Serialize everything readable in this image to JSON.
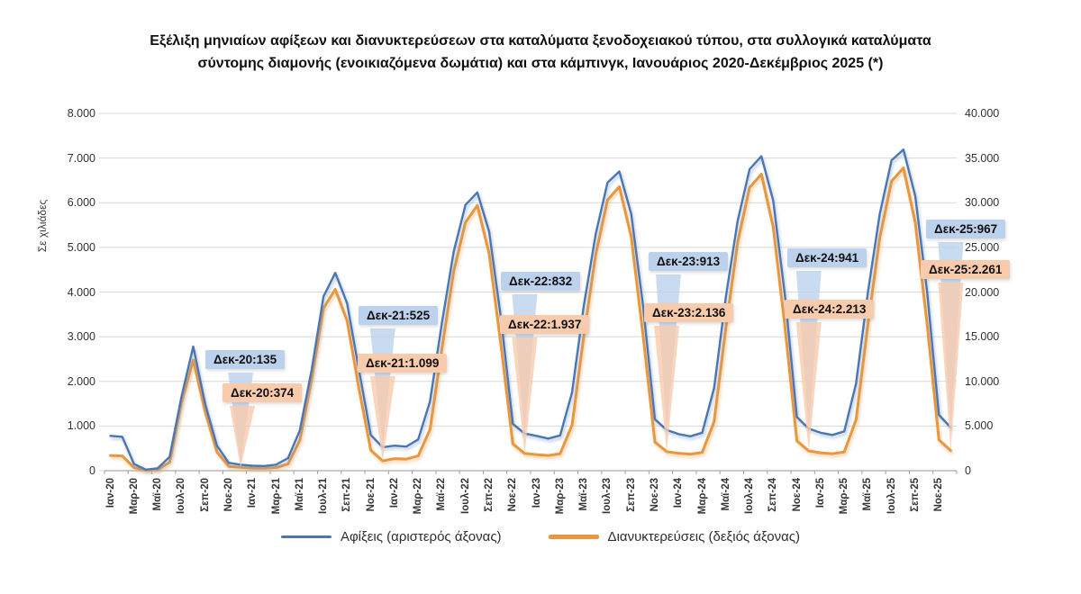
{
  "title": {
    "line1": "Εξέλιξη μηνιαίων αφίξεων και διανυκτερεύσεων στα καταλύματα ξενοδοχειακού τύπου, στα συλλογικά καταλύματα",
    "line2": "σύντομης διαμονής (ενοικιαζόμενα δωμάτια) και στα κάμπινγκ, Ιανουάριος 2020-Δεκέμβριος 2025 (*)"
  },
  "legend": {
    "items": [
      {
        "label": "Αφίξεις (αριστερός άξονας)",
        "color": "#4b76b2"
      },
      {
        "label": "Διανυκτερεύσεις (δεξιός άξονας)",
        "color": "#e9963e"
      }
    ]
  },
  "chart_data": {
    "type": "line",
    "left_axis": {
      "title": "Σε χιλιάδες",
      "min": 0,
      "max": 8000,
      "tick_step": 1000,
      "tick_labels": [
        "0",
        "1.000",
        "2.000",
        "3.000",
        "4.000",
        "5.000",
        "6.000",
        "7.000",
        "8.000"
      ]
    },
    "right_axis": {
      "min": 0,
      "max": 40000,
      "tick_step": 5000,
      "tick_labels": [
        "0",
        "5.000",
        "10.000",
        "15.000",
        "20.000",
        "25.000",
        "30.000",
        "35.000",
        "40.000"
      ]
    },
    "x_tick_labels": [
      "Ιαν-20",
      "Μαρ-20",
      "Μαϊ-20",
      "Ιουλ-20",
      "Σεπ-20",
      "Νοε-20",
      "Ιαν-21",
      "Μαρ-21",
      "Μαϊ-21",
      "Ιουλ-21",
      "Σεπ-21",
      "Νοε-21",
      "Ιαν-22",
      "Μαρ-22",
      "Μαϊ-22",
      "Ιουλ-22",
      "Σεπ-22",
      "Νοε-22",
      "Ιαν-23",
      "Μαρ-23",
      "Μαϊ-23",
      "Ιουλ-23",
      "Σεπ-23",
      "Νοε-23",
      "Ιαν-24",
      "Μαρ-24",
      "Μαϊ-24",
      "Ιουλ-24",
      "Σεπ-24",
      "Νοε-24",
      "Ιαν-25",
      "Μαρ-25",
      "Μαϊ-25",
      "Ιουλ-25",
      "Σεπ-25",
      "Νοε-25"
    ],
    "series": [
      {
        "name": "Αφίξεις (αριστερός άξονας)",
        "axis": "left",
        "color": "#4b76b2",
        "values": [
          780,
          760,
          150,
          25,
          55,
          310,
          1650,
          2780,
          1500,
          560,
          175,
          135,
          110,
          105,
          135,
          280,
          900,
          2250,
          3900,
          4430,
          3750,
          2250,
          800,
          525,
          560,
          540,
          700,
          1550,
          3300,
          4900,
          5950,
          6230,
          5350,
          3400,
          1050,
          832,
          780,
          720,
          790,
          1750,
          3700,
          5300,
          6450,
          6700,
          5750,
          3700,
          1150,
          913,
          820,
          770,
          850,
          1850,
          3900,
          5600,
          6750,
          7040,
          6050,
          3900,
          1200,
          941,
          850,
          800,
          880,
          1950,
          4000,
          5750,
          6950,
          7190,
          6150,
          4000,
          1250,
          967
        ]
      },
      {
        "name": "Διανυκτερεύσεις (δεξιός άξονας)",
        "axis": "right",
        "color": "#e9963e",
        "values": [
          1700,
          1650,
          350,
          60,
          130,
          950,
          7600,
          12400,
          6600,
          2100,
          480,
          374,
          290,
          270,
          350,
          750,
          3400,
          10200,
          18200,
          20300,
          16800,
          9200,
          2300,
          1099,
          1350,
          1300,
          1650,
          4600,
          13600,
          22300,
          27800,
          29700,
          24300,
          14000,
          3000,
          1937,
          1800,
          1700,
          1900,
          5100,
          15100,
          24200,
          30300,
          31800,
          26200,
          15200,
          3200,
          2136,
          1950,
          1850,
          2050,
          5500,
          16000,
          25600,
          31700,
          33200,
          27300,
          16000,
          3350,
          2213,
          2000,
          1900,
          2100,
          5700,
          16400,
          26100,
          32400,
          33900,
          27800,
          16400,
          3450,
          2261
        ]
      }
    ],
    "callouts": [
      {
        "series": 0,
        "label": "Δεκ-20:135",
        "month": "Δεκ-20",
        "value": 135,
        "month_index": 11
      },
      {
        "series": 1,
        "label": "Δεκ-20:374",
        "month": "Δεκ-20",
        "value": 374,
        "month_index": 11
      },
      {
        "series": 0,
        "label": "Δεκ-21:525",
        "month": "Δεκ-21",
        "value": 525,
        "month_index": 23
      },
      {
        "series": 1,
        "label": "Δεκ-21:1.099",
        "month": "Δεκ-21",
        "value": 1099,
        "month_index": 23
      },
      {
        "series": 0,
        "label": "Δεκ-22:832",
        "month": "Δεκ-22",
        "value": 832,
        "month_index": 35
      },
      {
        "series": 1,
        "label": "Δεκ-22:1.937",
        "month": "Δεκ-22",
        "value": 1937,
        "month_index": 35
      },
      {
        "series": 0,
        "label": "Δεκ-23:913",
        "month": "Δεκ-23",
        "value": 913,
        "month_index": 47
      },
      {
        "series": 1,
        "label": "Δεκ-23:2.136",
        "month": "Δεκ-23",
        "value": 2136,
        "month_index": 47
      },
      {
        "series": 0,
        "label": "Δεκ-24:941",
        "month": "Δεκ-24",
        "value": 941,
        "month_index": 59
      },
      {
        "series": 1,
        "label": "Δεκ-24:2.213",
        "month": "Δεκ-24",
        "value": 2213,
        "month_index": 59
      },
      {
        "series": 0,
        "label": "Δεκ-25:967",
        "month": "Δεκ-25",
        "value": 967,
        "month_index": 71
      },
      {
        "series": 1,
        "label": "Δεκ-25:2.261",
        "month": "Δεκ-25",
        "value": 2261,
        "month_index": 71
      }
    ],
    "callout_colors": {
      "left": "#bcd2ec",
      "right": "#f8cbad"
    },
    "grid": true,
    "legend_position": "bottom"
  }
}
